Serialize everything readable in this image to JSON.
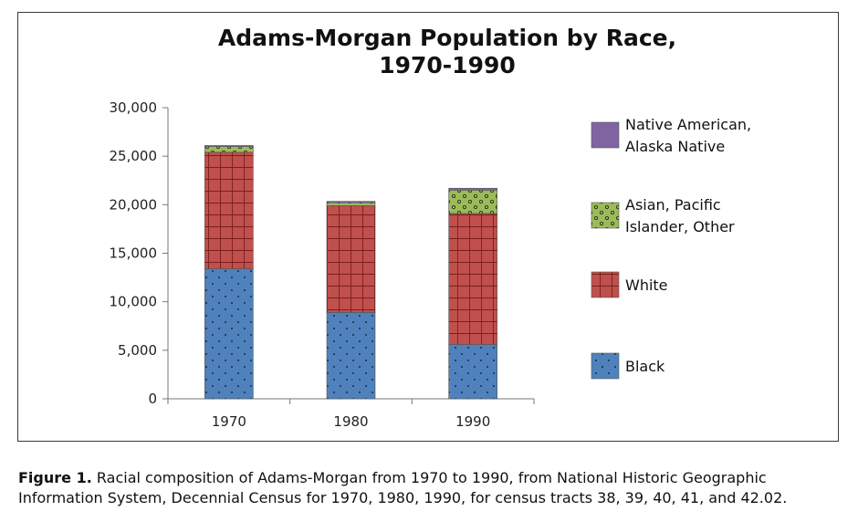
{
  "chart_data": {
    "type": "bar",
    "stacked": true,
    "title_lines": [
      "Adams-Morgan Population by Race,",
      "1970-1990"
    ],
    "categories": [
      "1970",
      "1980",
      "1990"
    ],
    "y_ticks": [
      "0",
      "5,000",
      "10,000",
      "15,000",
      "20,000",
      "25,000",
      "30,000"
    ],
    "ylim": [
      0,
      30000
    ],
    "series": [
      {
        "name": "Black",
        "color": "#4f81bd",
        "pattern": "dots",
        "values": [
          13400,
          8900,
          5600
        ]
      },
      {
        "name": "White",
        "color": "#c0504d",
        "pattern": "grid",
        "values": [
          12000,
          11000,
          13500
        ]
      },
      {
        "name": "Asian, Pacific Islander, Other",
        "color": "#9bbb59",
        "pattern": "circles",
        "values": [
          600,
          300,
          2400
        ]
      },
      {
        "name": "Native American, Alaska Native",
        "color": "#8064a2",
        "pattern": "solid",
        "values": [
          100,
          150,
          200
        ]
      }
    ],
    "legend": [
      {
        "lines": [
          "Native American,",
          "Alaska Native"
        ],
        "series": 3
      },
      {
        "lines": [
          "Asian, Pacific",
          "Islander, Other"
        ],
        "series": 2
      },
      {
        "lines": [
          "White"
        ],
        "series": 1
      },
      {
        "lines": [
          "Black"
        ],
        "series": 0
      }
    ]
  },
  "caption": {
    "label": "Figure 1.",
    "text": "Racial composition of Adams-Morgan from 1970 to 1990, from National Historic Geographic Information System, Decennial Census for 1970, 1980, 1990, for census tracts 38, 39, 40, 41, and 42.02."
  }
}
